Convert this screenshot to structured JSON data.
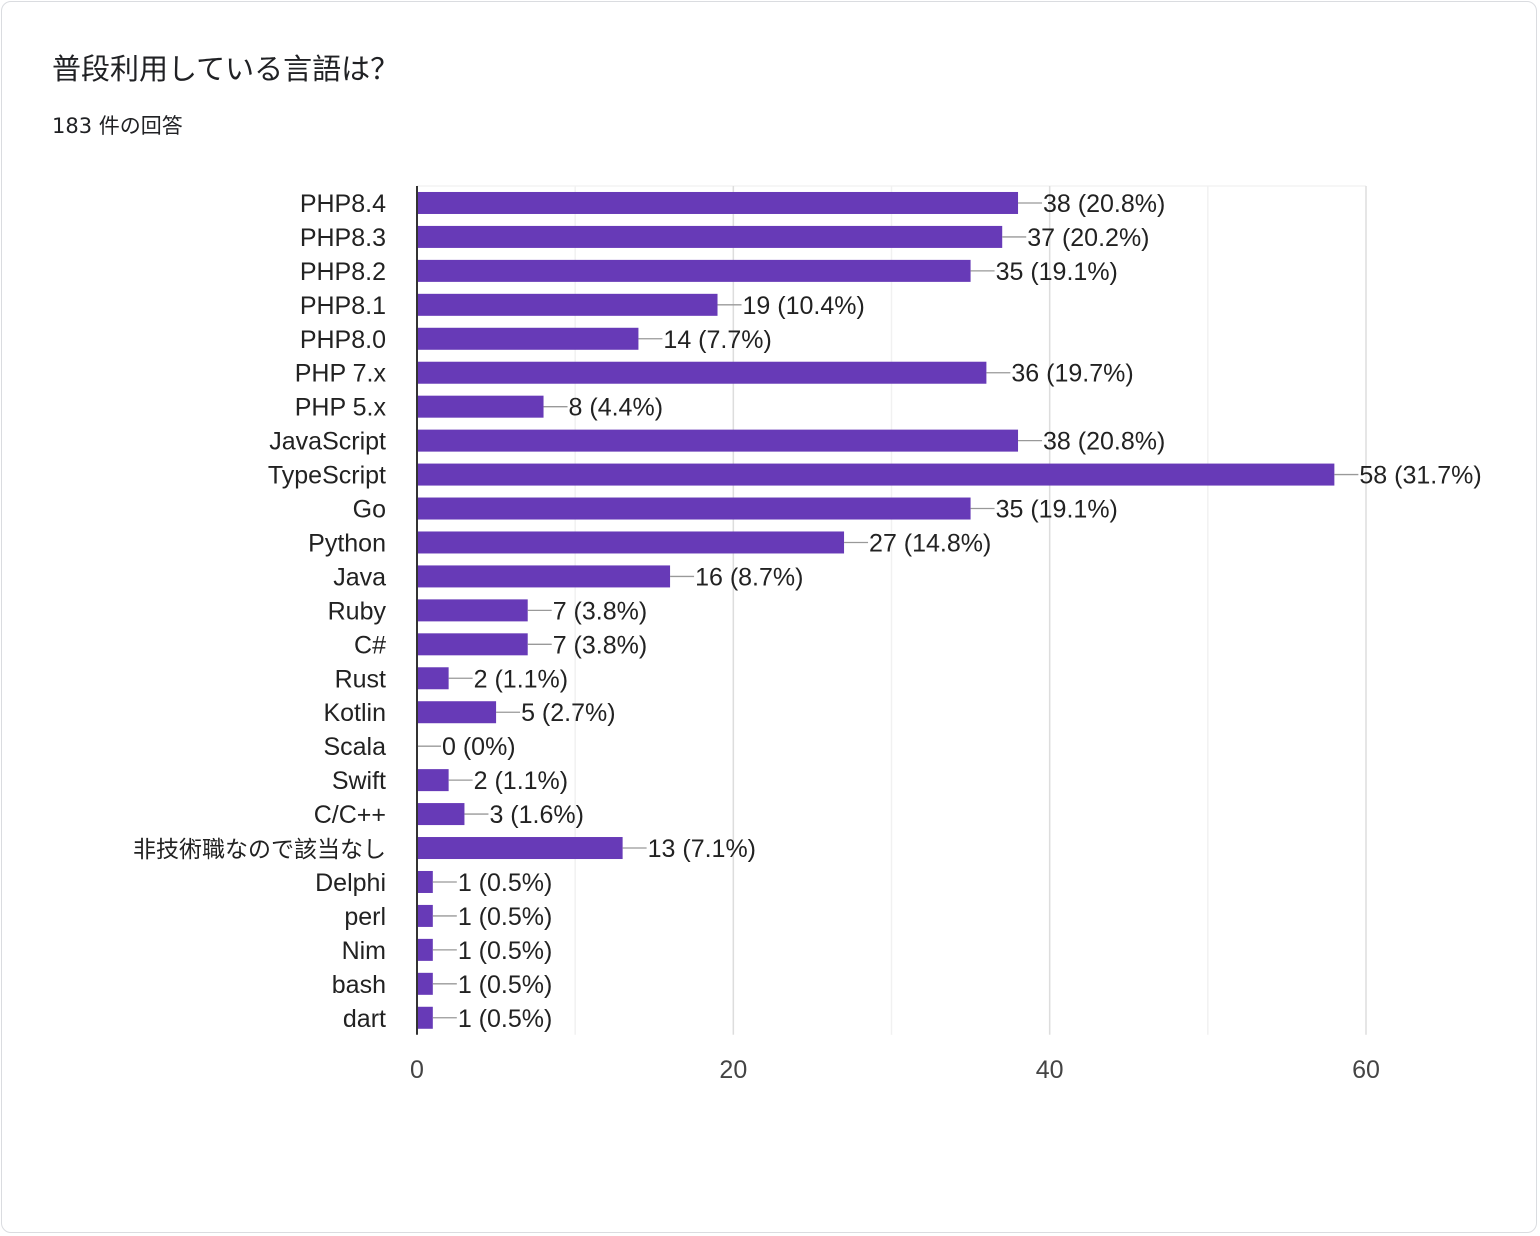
{
  "header": {
    "title": "普段利用している言語は？",
    "subtitle": "183 件の回答"
  },
  "chart_data": {
    "type": "bar",
    "orientation": "horizontal",
    "title": "普段利用している言語は？",
    "subtitle": "183 件の回答",
    "categories": [
      "PHP8.4",
      "PHP8.3",
      "PHP8.2",
      "PHP8.1",
      "PHP8.0",
      "PHP 7.x",
      "PHP 5.x",
      "JavaScript",
      "TypeScript",
      "Go",
      "Python",
      "Java",
      "Ruby",
      "C#",
      "Rust",
      "Kotlin",
      "Scala",
      "Swift",
      "C/C++",
      "非技術職なので該当なし",
      "Delphi",
      "perl",
      "Nim",
      "bash",
      "dart"
    ],
    "values": [
      38,
      37,
      35,
      19,
      14,
      36,
      8,
      38,
      58,
      35,
      27,
      16,
      7,
      7,
      2,
      5,
      0,
      2,
      3,
      13,
      1,
      1,
      1,
      1,
      1
    ],
    "data_labels": [
      "38 (20.8%)",
      "37 (20.2%)",
      "35 (19.1%)",
      "19 (10.4%)",
      "14 (7.7%)",
      "36 (19.7%)",
      "8 (4.4%)",
      "38 (20.8%)",
      "58 (31.7%)",
      "35 (19.1%)",
      "27 (14.8%)",
      "16 (8.7%)",
      "7 (3.8%)",
      "7 (3.8%)",
      "2 (1.1%)",
      "5 (2.7%)",
      "0 (0%)",
      "2 (1.1%)",
      "3 (1.6%)",
      "13 (7.1%)",
      "1 (0.5%)",
      "1 (0.5%)",
      "1 (0.5%)",
      "1 (0.5%)",
      "1 (0.5%)"
    ],
    "xlim": [
      0,
      60
    ],
    "xticks": [
      0,
      20,
      40,
      60
    ],
    "xtick_labels": [
      "0",
      "20",
      "40",
      "60"
    ],
    "minor_gridlines": [
      10,
      30,
      50
    ],
    "grid": true,
    "bar_color": "#673ab7",
    "legend": "none"
  }
}
